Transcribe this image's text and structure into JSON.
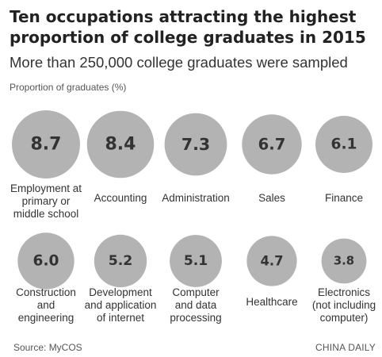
{
  "chart_data": {
    "type": "bubble",
    "title": "Ten occupations attracting the highest proportion of college graduates in 2015",
    "subtitle": "More than 250,000 college graduates were sampled",
    "ylabel": "Proportion of graduates (%)",
    "categories": [
      "Employment at primary or middle school",
      "Accounting",
      "Administration",
      "Sales",
      "Finance",
      "Construction and engineering",
      "Development and application of internet",
      "Computer and data processing",
      "Healthcare",
      "Electronics (not including computer)"
    ],
    "category_lines": [
      [
        "Employment at",
        "primary or",
        "middle school"
      ],
      [
        "Accounting"
      ],
      [
        "Administration"
      ],
      [
        "Sales"
      ],
      [
        "Finance"
      ],
      [
        "Construction",
        "and",
        "engineering"
      ],
      [
        "Development",
        "and application",
        "of internet"
      ],
      [
        "Computer",
        "and data",
        "processing"
      ],
      [
        "Healthcare"
      ],
      [
        "Electronics",
        "(not including",
        "computer)"
      ]
    ],
    "values": [
      8.7,
      8.4,
      7.3,
      6.7,
      6.1,
      6.0,
      5.2,
      5.1,
      4.7,
      3.8
    ],
    "value_labels": [
      "8.7",
      "8.4",
      "7.3",
      "6.7",
      "6.1",
      "6.0",
      "5.2",
      "5.1",
      "4.7",
      "3.8"
    ],
    "bubble_color": "#b3b3b3",
    "text_color": "#333333"
  },
  "footer": {
    "source": "Source: MyCOS",
    "brand": "CHINA DAILY"
  }
}
